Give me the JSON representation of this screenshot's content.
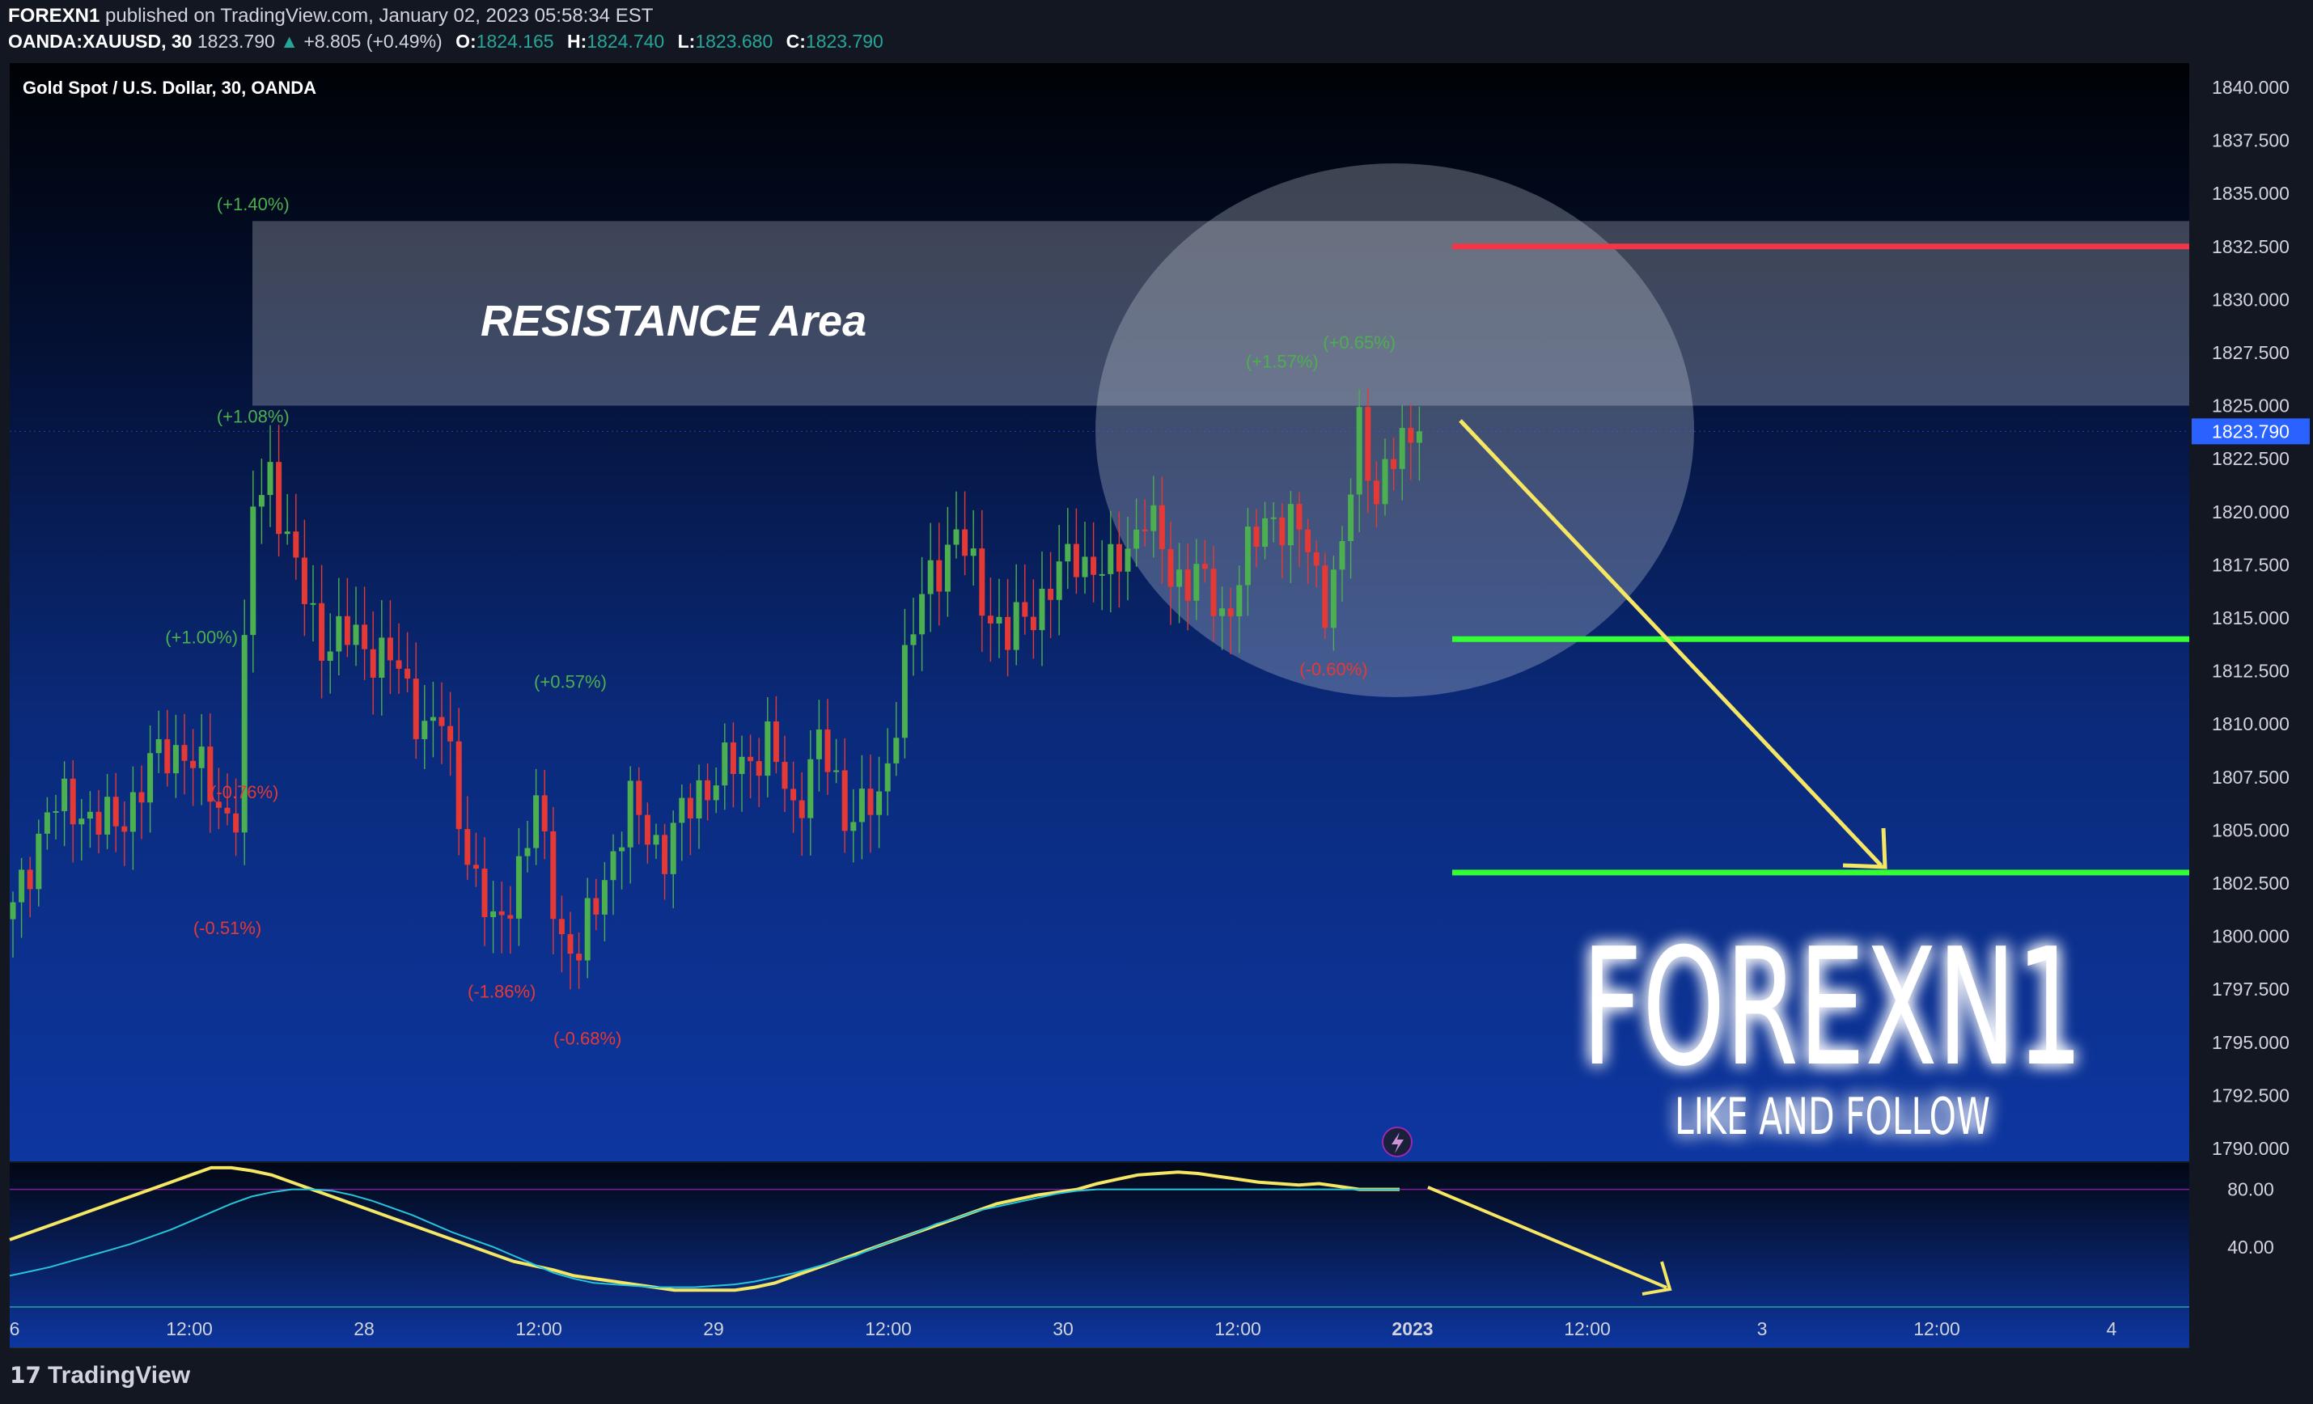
{
  "header": {
    "publisher": "FOREXN1",
    "published_text": "published on TradingView.com, January 02, 2023 05:58:34 EST",
    "symbol": "OANDA:XAUUSD, 30",
    "last": "1823.790",
    "change": "+8.805 (+0.49%)",
    "open_label": "O:",
    "open": "1824.165",
    "high_label": "H:",
    "high": "1824.740",
    "low_label": "L:",
    "low": "1823.680",
    "close_label": "C:",
    "close": "1823.790"
  },
  "footer": {
    "brand": "TradingView"
  },
  "colors": {
    "up": "#4caf50",
    "down": "#e53935",
    "resistance_line": "#f23645",
    "support_line": "#33ff33",
    "arrow": "#f5e663",
    "stoch_k": "#f5e663",
    "stoch_d": "#26c6da",
    "price_tag": "#2962ff"
  },
  "chart_data": [
    {
      "type": "candlestick",
      "title": "Gold Spot / U.S. Dollar, 30, OANDA",
      "ylim": [
        1789,
        1841
      ],
      "y_ticks": [
        "1840.000",
        "1837.500",
        "1835.000",
        "1832.500",
        "1830.000",
        "1827.500",
        "1825.000",
        "1822.500",
        "1820.000",
        "1817.500",
        "1815.000",
        "1812.500",
        "1810.000",
        "1807.500",
        "1805.000",
        "1802.500",
        "1800.000",
        "1797.500",
        "1795.000",
        "1792.500",
        "1790.000"
      ],
      "x_ticks": [
        "6",
        "12:00",
        "28",
        "12:00",
        "29",
        "12:00",
        "30",
        "12:00",
        "2023",
        "12:00",
        "3",
        "12:00",
        "4"
      ],
      "last_price_label": "1823.790",
      "last_price": 1823.79,
      "key_points": [
        {
          "i": 0,
          "p": 1801
        },
        {
          "i": 4,
          "p": 1806
        },
        {
          "i": 8,
          "p": 1806
        },
        {
          "i": 12,
          "p": 1805
        },
        {
          "i": 16,
          "p": 1808
        },
        {
          "i": 20,
          "p": 1809
        },
        {
          "i": 24,
          "p": 1806
        },
        {
          "i": 26,
          "p": 1806
        },
        {
          "i": 28,
          "p": 1820
        },
        {
          "i": 30,
          "p": 1822
        },
        {
          "i": 33,
          "p": 1817
        },
        {
          "i": 36,
          "p": 1814
        },
        {
          "i": 40,
          "p": 1814
        },
        {
          "i": 44,
          "p": 1813
        },
        {
          "i": 48,
          "p": 1810
        },
        {
          "i": 50,
          "p": 1810
        },
        {
          "i": 53,
          "p": 1804
        },
        {
          "i": 56,
          "p": 1800
        },
        {
          "i": 58,
          "p": 1802
        },
        {
          "i": 61,
          "p": 1806
        },
        {
          "i": 64,
          "p": 1800
        },
        {
          "i": 66,
          "p": 1799
        },
        {
          "i": 69,
          "p": 1803
        },
        {
          "i": 72,
          "p": 1806
        },
        {
          "i": 76,
          "p": 1804
        },
        {
          "i": 80,
          "p": 1807
        },
        {
          "i": 84,
          "p": 1808
        },
        {
          "i": 88,
          "p": 1809
        },
        {
          "i": 91,
          "p": 1806
        },
        {
          "i": 94,
          "p": 1809
        },
        {
          "i": 97,
          "p": 1806
        },
        {
          "i": 101,
          "p": 1806
        },
        {
          "i": 104,
          "p": 1813
        },
        {
          "i": 107,
          "p": 1817
        },
        {
          "i": 110,
          "p": 1819
        },
        {
          "i": 113,
          "p": 1816
        },
        {
          "i": 116,
          "p": 1814
        },
        {
          "i": 120,
          "p": 1816
        },
        {
          "i": 124,
          "p": 1818
        },
        {
          "i": 128,
          "p": 1817
        },
        {
          "i": 132,
          "p": 1820
        },
        {
          "i": 135,
          "p": 1817
        },
        {
          "i": 138,
          "p": 1817
        },
        {
          "i": 141,
          "p": 1815
        },
        {
          "i": 144,
          "p": 1818
        },
        {
          "i": 147,
          "p": 1820
        },
        {
          "i": 150,
          "p": 1819
        },
        {
          "i": 153,
          "p": 1816
        },
        {
          "i": 155,
          "p": 1818
        },
        {
          "i": 157,
          "p": 1824
        },
        {
          "i": 159,
          "p": 1821
        },
        {
          "i": 162,
          "p": 1823
        },
        {
          "i": 164,
          "p": 1823.79
        }
      ],
      "annotations": [
        {
          "text": "(+1.40%)",
          "i": 28,
          "p": 1834.2,
          "color": "#4caf50"
        },
        {
          "text": "(+1.08%)",
          "i": 28,
          "p": 1824.2,
          "color": "#4caf50"
        },
        {
          "text": "(+1.00%)",
          "i": 22,
          "p": 1813.8,
          "color": "#4caf50"
        },
        {
          "text": "(-0.76%)",
          "i": 27,
          "p": 1806.5,
          "color": "#e53935"
        },
        {
          "text": "(-0.51%)",
          "i": 25,
          "p": 1800.1,
          "color": "#e53935"
        },
        {
          "text": "(+0.57%)",
          "i": 65,
          "p": 1811.7,
          "color": "#4caf50"
        },
        {
          "text": "(-1.86%)",
          "i": 57,
          "p": 1797.1,
          "color": "#e53935"
        },
        {
          "text": "(-0.68%)",
          "i": 67,
          "p": 1794.9,
          "color": "#e53935"
        },
        {
          "text": "(+1.57%)",
          "i": 148,
          "p": 1826.8,
          "color": "#4caf50"
        },
        {
          "text": "(+0.65%)",
          "i": 157,
          "p": 1827.7,
          "color": "#4caf50"
        },
        {
          "text": "(-0.60%)",
          "i": 154,
          "p": 1812.3,
          "color": "#e53935"
        }
      ],
      "resistance_zone": {
        "label": "RESISTANCE Area",
        "from": 1825,
        "to": 1833.7
      },
      "lines": [
        {
          "name": "resistance",
          "price": 1832.5
        },
        {
          "name": "support-1",
          "price": 1814
        },
        {
          "name": "support-2",
          "price": 1803
        }
      ]
    },
    {
      "type": "line",
      "y_ticks": [
        "80.00",
        "40.00"
      ],
      "ylim": [
        0,
        100
      ],
      "overbought": 80,
      "series": [
        {
          "values": [
            45,
            50,
            55,
            60,
            65,
            70,
            75,
            80,
            85,
            90,
            95,
            95,
            93,
            90,
            85,
            80,
            75,
            70,
            65,
            60,
            55,
            50,
            45,
            40,
            35,
            30,
            27,
            24,
            20,
            18,
            16,
            14,
            12,
            10,
            10,
            10,
            10,
            12,
            15,
            20,
            25,
            30,
            35,
            40,
            45,
            50,
            55,
            60,
            65,
            70,
            73,
            76,
            78,
            80,
            84,
            87,
            90,
            91,
            92,
            91,
            89,
            87,
            85,
            84,
            83,
            84,
            82,
            80,
            80,
            80
          ]
        },
        {
          "values": [
            20,
            23,
            26,
            30,
            34,
            38,
            42,
            47,
            52,
            58,
            64,
            70,
            75,
            78,
            80,
            80,
            79,
            76,
            72,
            67,
            62,
            56,
            50,
            45,
            40,
            34,
            28,
            22,
            18,
            15,
            14,
            13,
            12,
            12,
            12,
            13,
            14,
            16,
            19,
            22,
            26,
            30,
            34,
            40,
            45,
            50,
            56,
            60,
            65,
            68,
            71,
            74,
            77,
            79,
            80,
            80,
            80,
            80,
            80,
            80,
            80,
            80,
            80,
            80,
            80,
            80,
            80,
            80,
            80,
            80
          ]
        }
      ]
    }
  ],
  "watermark": {
    "title": "FOREXN1",
    "subtitle": "LIKE AND FOLLOW"
  }
}
